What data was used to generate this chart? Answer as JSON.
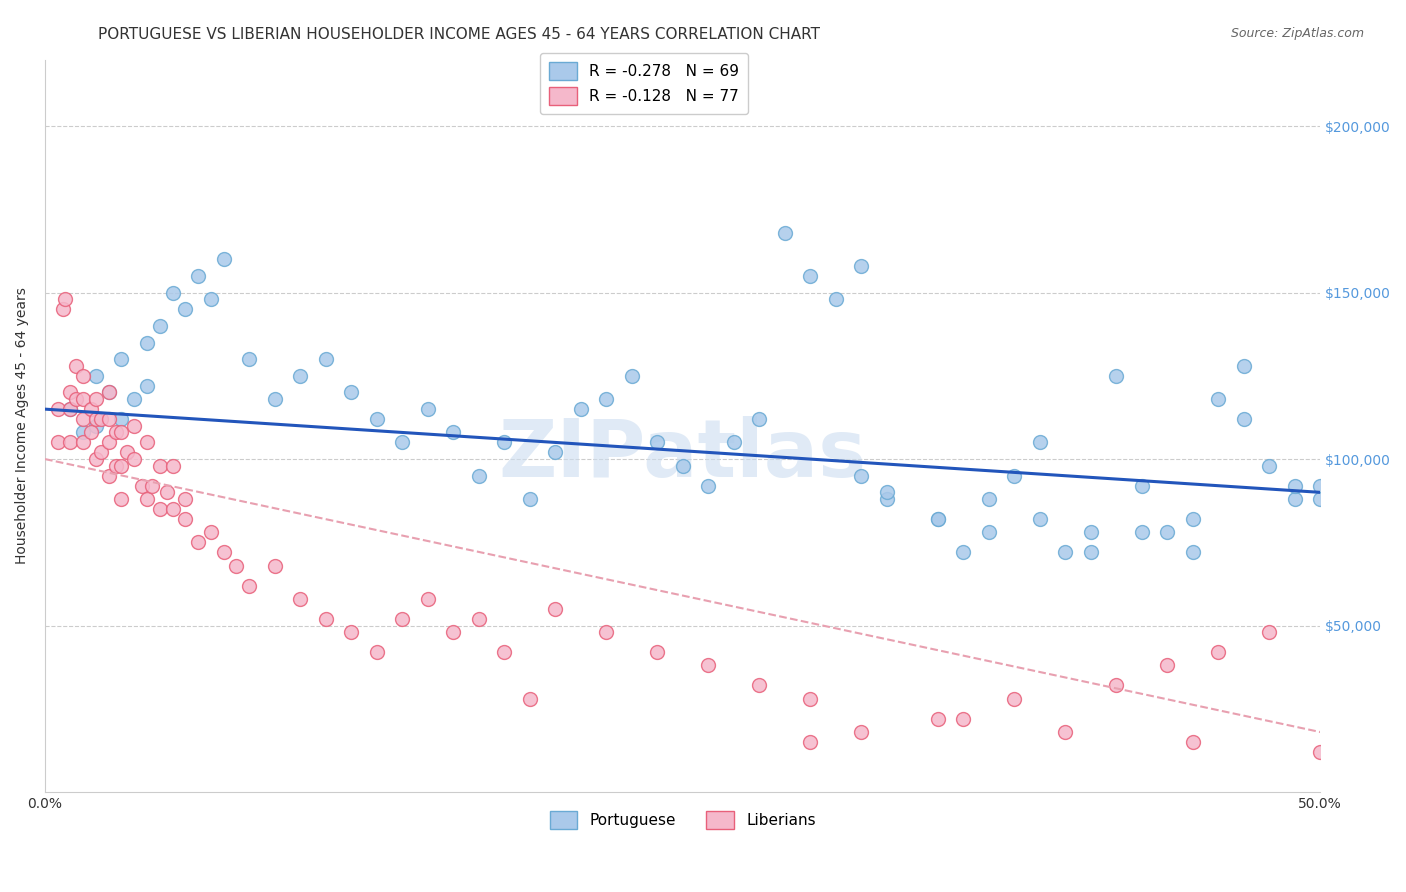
{
  "title": "PORTUGUESE VS LIBERIAN HOUSEHOLDER INCOME AGES 45 - 64 YEARS CORRELATION CHART",
  "source": "Source: ZipAtlas.com",
  "ylabel": "Householder Income Ages 45 - 64 years",
  "xmin": 0.0,
  "xmax": 0.5,
  "ymin": 0,
  "ymax": 220000,
  "ytick_vals": [
    0,
    50000,
    100000,
    150000,
    200000
  ],
  "ytick_labels": [
    "",
    "$50,000",
    "$100,000",
    "$150,000",
    "$200,000"
  ],
  "xtick_vals": [
    0.0,
    0.1,
    0.2,
    0.3,
    0.4,
    0.5
  ],
  "xtick_labels": [
    "0.0%",
    "",
    "",
    "",
    "",
    "50.0%"
  ],
  "portuguese_color": "#aac9ea",
  "portuguese_edge_color": "#6aaad4",
  "liberian_color": "#f5b8cb",
  "liberian_edge_color": "#e8607a",
  "trend_portuguese_color": "#2255bb",
  "trend_liberian_color": "#e8a0b0",
  "watermark_color": "#ccddf0",
  "legend_label_portuguese": "R = -0.278   N = 69",
  "legend_label_liberian": "R = -0.128   N = 77",
  "title_fontsize": 11,
  "source_fontsize": 9,
  "axis_label_fontsize": 10,
  "tick_label_fontsize": 10,
  "legend_fontsize": 11,
  "marker_size": 100,
  "background_color": "#ffffff",
  "grid_color": "#cccccc",
  "ytick_color": "#5599dd",
  "portuguese_x": [
    0.01,
    0.015,
    0.02,
    0.02,
    0.025,
    0.03,
    0.03,
    0.035,
    0.04,
    0.04,
    0.045,
    0.05,
    0.055,
    0.06,
    0.065,
    0.07,
    0.08,
    0.09,
    0.1,
    0.11,
    0.12,
    0.13,
    0.14,
    0.15,
    0.16,
    0.17,
    0.18,
    0.19,
    0.2,
    0.21,
    0.22,
    0.23,
    0.24,
    0.25,
    0.26,
    0.27,
    0.28,
    0.29,
    0.3,
    0.31,
    0.32,
    0.33,
    0.35,
    0.36,
    0.37,
    0.38,
    0.39,
    0.4,
    0.41,
    0.42,
    0.43,
    0.44,
    0.45,
    0.46,
    0.47,
    0.48,
    0.49,
    0.5,
    0.5,
    0.49,
    0.47,
    0.45,
    0.43,
    0.41,
    0.39,
    0.37,
    0.35,
    0.33,
    0.32
  ],
  "portuguese_y": [
    115000,
    108000,
    125000,
    110000,
    120000,
    130000,
    112000,
    118000,
    135000,
    122000,
    140000,
    150000,
    145000,
    155000,
    148000,
    160000,
    130000,
    118000,
    125000,
    130000,
    120000,
    112000,
    105000,
    115000,
    108000,
    95000,
    105000,
    88000,
    102000,
    115000,
    118000,
    125000,
    105000,
    98000,
    92000,
    105000,
    112000,
    168000,
    155000,
    148000,
    158000,
    88000,
    82000,
    72000,
    78000,
    95000,
    82000,
    72000,
    78000,
    125000,
    92000,
    78000,
    72000,
    118000,
    112000,
    98000,
    88000,
    92000,
    88000,
    92000,
    128000,
    82000,
    78000,
    72000,
    105000,
    88000,
    82000,
    90000,
    95000
  ],
  "liberian_x": [
    0.005,
    0.005,
    0.007,
    0.008,
    0.01,
    0.01,
    0.01,
    0.012,
    0.012,
    0.015,
    0.015,
    0.015,
    0.015,
    0.018,
    0.018,
    0.02,
    0.02,
    0.02,
    0.022,
    0.022,
    0.025,
    0.025,
    0.025,
    0.025,
    0.028,
    0.028,
    0.03,
    0.03,
    0.03,
    0.032,
    0.035,
    0.035,
    0.038,
    0.04,
    0.04,
    0.042,
    0.045,
    0.045,
    0.048,
    0.05,
    0.05,
    0.055,
    0.055,
    0.06,
    0.065,
    0.07,
    0.075,
    0.08,
    0.09,
    0.1,
    0.11,
    0.12,
    0.13,
    0.14,
    0.15,
    0.16,
    0.17,
    0.18,
    0.19,
    0.2,
    0.22,
    0.24,
    0.26,
    0.28,
    0.3,
    0.35,
    0.4,
    0.45,
    0.5,
    0.48,
    0.46,
    0.44,
    0.42,
    0.38,
    0.36,
    0.32,
    0.3
  ],
  "liberian_y": [
    115000,
    105000,
    145000,
    148000,
    120000,
    115000,
    105000,
    128000,
    118000,
    125000,
    118000,
    112000,
    105000,
    115000,
    108000,
    118000,
    112000,
    100000,
    112000,
    102000,
    120000,
    112000,
    105000,
    95000,
    108000,
    98000,
    108000,
    98000,
    88000,
    102000,
    110000,
    100000,
    92000,
    105000,
    88000,
    92000,
    98000,
    85000,
    90000,
    98000,
    85000,
    82000,
    88000,
    75000,
    78000,
    72000,
    68000,
    62000,
    68000,
    58000,
    52000,
    48000,
    42000,
    52000,
    58000,
    48000,
    52000,
    42000,
    28000,
    55000,
    48000,
    42000,
    38000,
    32000,
    28000,
    22000,
    18000,
    15000,
    12000,
    48000,
    42000,
    38000,
    32000,
    28000,
    22000,
    18000,
    15000
  ]
}
